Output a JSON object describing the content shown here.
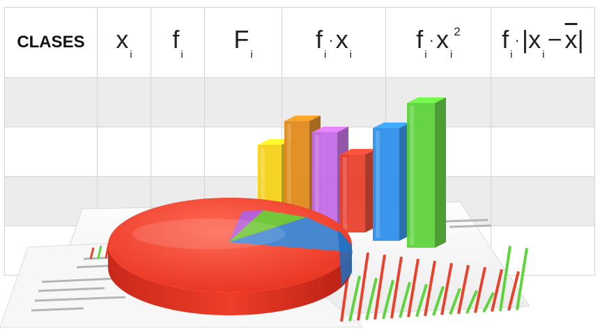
{
  "table": {
    "headers": [
      {
        "id": "clases",
        "text": "CLASES"
      },
      {
        "id": "xi",
        "base": "x",
        "sub": "i"
      },
      {
        "id": "fi",
        "base": "f",
        "sub": "i"
      },
      {
        "id": "Fi",
        "base": "F",
        "sub": "i"
      },
      {
        "id": "fixi",
        "parts": [
          "f",
          "i",
          "·",
          "x",
          "i"
        ]
      },
      {
        "id": "fixi2",
        "parts": [
          "f",
          "i",
          "·",
          "x",
          "i",
          "2"
        ]
      },
      {
        "id": "fiabs",
        "parts": [
          "f",
          "i",
          "·",
          "|",
          "x",
          "i",
          "−",
          "x",
          "|"
        ]
      }
    ],
    "rows": 4
  },
  "colors": {
    "grid": "#d4d4d4",
    "shade": "#ececec",
    "pie_red": "#f03a2a",
    "pie_blue": "#2f8fe6",
    "pie_green": "#5fd63a",
    "pie_purple": "#b060e6",
    "bar_yellow": "#f4d21a",
    "bar_orange": "#e08a1c",
    "bar_purple": "#c46be8",
    "bar_red": "#e8412c",
    "bar_blue": "#2f90ea",
    "bar_green": "#5ed43c"
  }
}
